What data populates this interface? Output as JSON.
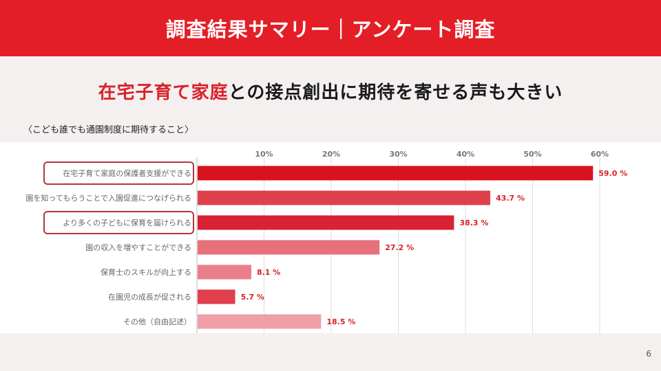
{
  "header": {
    "title": "調査結果サマリー｜アンケート調査"
  },
  "headline": {
    "accent": "在宅子育て家庭",
    "rest": "との接点創出に期待を寄せる声も大きい"
  },
  "page_number": "6",
  "chart_data": {
    "type": "bar",
    "orientation": "horizontal",
    "title": "〈こども誰でも通園制度に期待すること〉",
    "categories": [
      "在宅子育て家庭の保護者支援ができる",
      "園を知ってもらうことで入園促進につなげられる",
      "より多くの子どもに保育を届けられる",
      "園の収入を増やすことができる",
      "保育士のスキルが向上する",
      "在園児の成長が促される",
      "その他（自由記述）"
    ],
    "values": [
      59.0,
      43.7,
      38.3,
      27.2,
      8.1,
      5.7,
      18.5
    ],
    "value_labels": [
      "59.0 %",
      "43.7 %",
      "38.3 %",
      "27.2 %",
      "8.1 %",
      "5.7 %",
      "18.5 %"
    ],
    "bar_colors": [
      "#d9121f",
      "#e0404e",
      "#d92233",
      "#e8707a",
      "#ea7f88",
      "#e0404e",
      "#eea0a6"
    ],
    "highlighted_categories": [
      0,
      2
    ],
    "xlim": [
      0,
      60
    ],
    "xticks": [
      "10%",
      "20%",
      "30%",
      "40%",
      "50%",
      "60%"
    ],
    "tick_values": [
      10,
      20,
      30,
      40,
      50,
      60
    ],
    "grid": true,
    "label_color": "#d92128",
    "highlight_color": "#b8323f"
  }
}
